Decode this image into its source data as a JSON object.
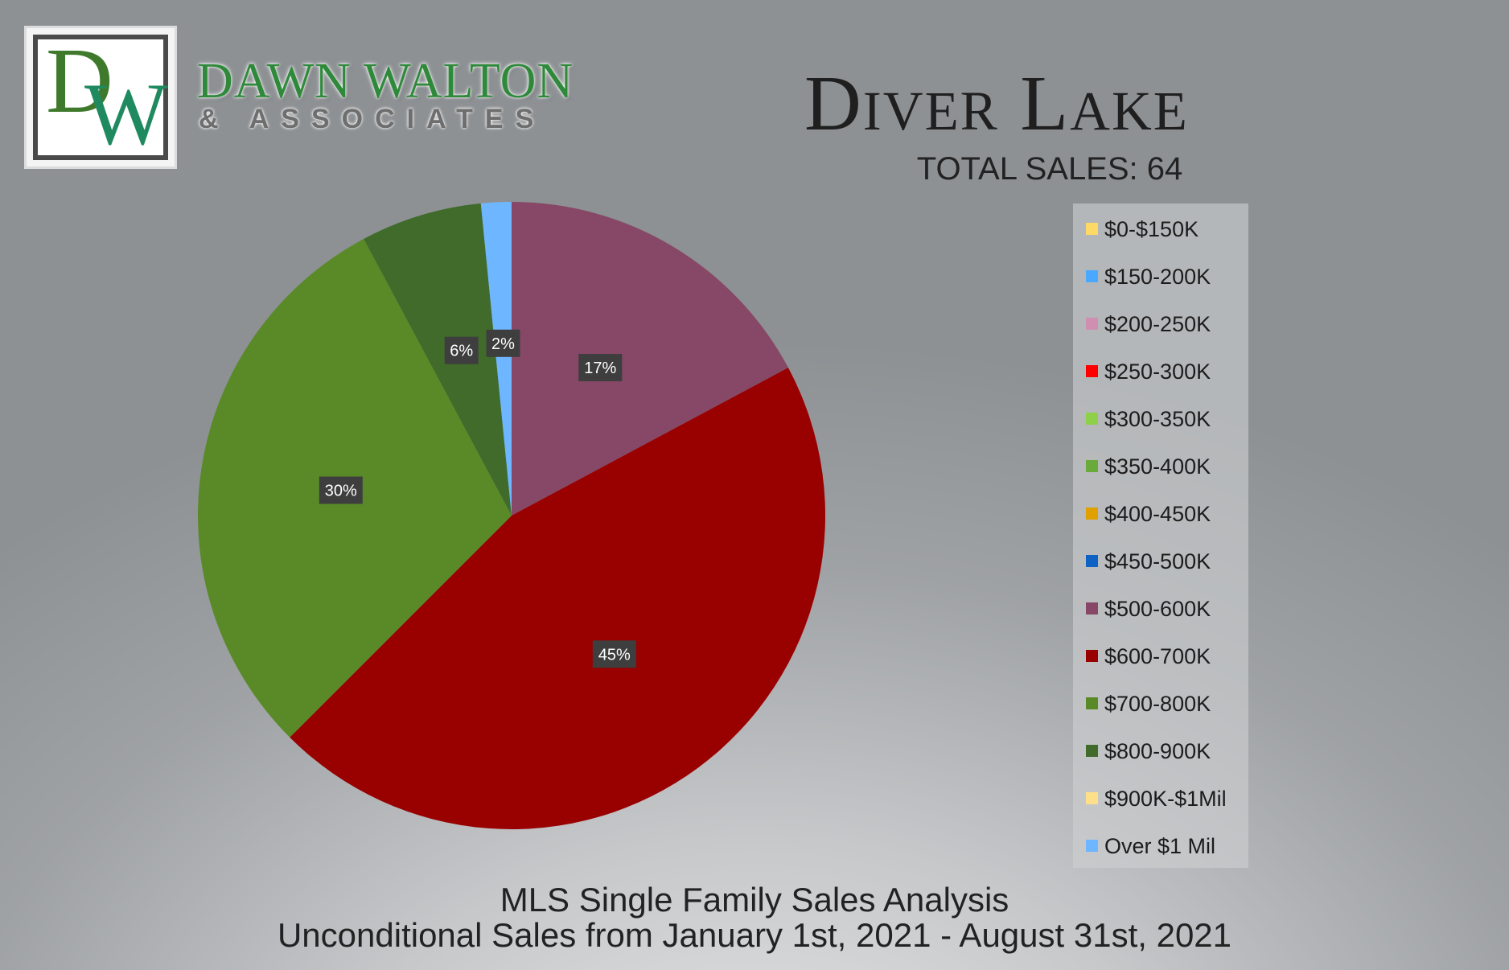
{
  "brand": {
    "logo_letters": [
      "D",
      "W"
    ],
    "name": "DAWN WALTON",
    "subtitle": "& ASSOCIATES"
  },
  "header": {
    "title": "Diver Lake",
    "total_sales": "TOTAL SALES: 64"
  },
  "footer": {
    "line1": "MLS Single Family Sales Analysis",
    "line2": "Unconditional Sales from January 1st, 2021 - August 31st, 2021"
  },
  "chart_data": {
    "type": "pie",
    "title": "Diver Lake",
    "legend_position": "right",
    "categories": [
      "$0-$150K",
      "$150-200K",
      "$200-250K",
      "$250-300K",
      "$300-350K",
      "$350-400K",
      "$400-450K",
      "$450-500K",
      "$500-600K",
      "$600-700K",
      "$700-800K",
      "$800-900K",
      "$900K-$1Mil",
      "Over $1 Mil"
    ],
    "values": [
      0,
      0,
      0,
      0,
      0,
      0,
      0,
      0,
      11,
      29,
      19,
      4,
      0,
      1
    ],
    "percent_labels": [
      "",
      "",
      "",
      "",
      "",
      "",
      "",
      "",
      "17%",
      "45%",
      "30%",
      "6%",
      "",
      "2%"
    ],
    "colors": [
      "#ffd966",
      "#4aa8ff",
      "#d08fb0",
      "#ff0000",
      "#8ed04a",
      "#6aaa3a",
      "#e0a000",
      "#0e62c4",
      "#864866",
      "#990000",
      "#5a8a27",
      "#416b2b",
      "#ffe08a",
      "#6eb6ff"
    ]
  }
}
